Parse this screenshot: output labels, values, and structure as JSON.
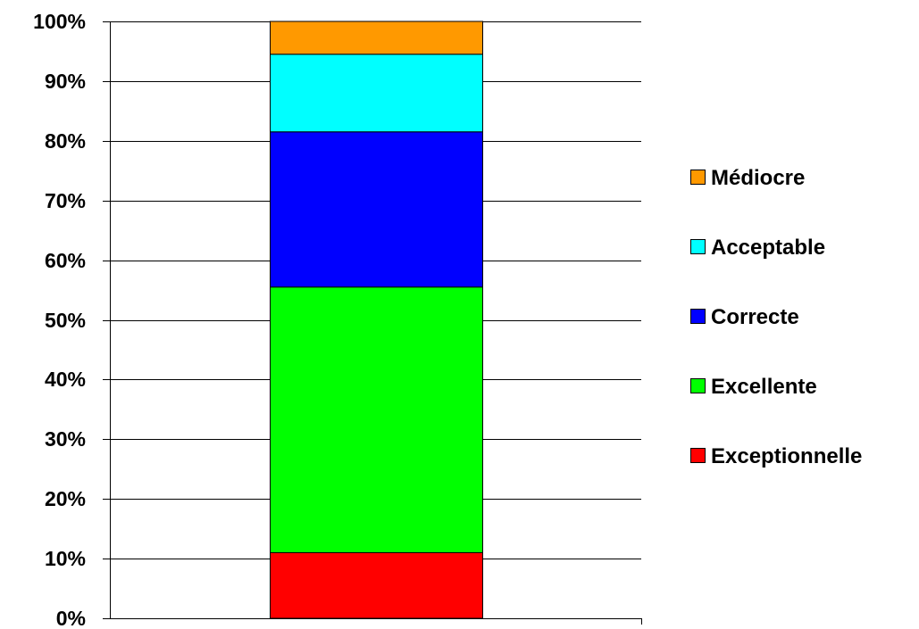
{
  "chart_data": {
    "type": "bar",
    "stacked": true,
    "categories": [
      ""
    ],
    "series": [
      {
        "name": "Exceptionnelle",
        "values": [
          11
        ],
        "color": "#ff0000"
      },
      {
        "name": "Excellente",
        "values": [
          44.5
        ],
        "color": "#00ff00"
      },
      {
        "name": "Correcte",
        "values": [
          26
        ],
        "color": "#0000ff"
      },
      {
        "name": "Acceptable",
        "values": [
          13
        ],
        "color": "#00ffff"
      },
      {
        "name": "Médiocre",
        "values": [
          5.5
        ],
        "color": "#ff9900"
      }
    ],
    "ylim": [
      0,
      100
    ],
    "yticks": [
      "0%",
      "10%",
      "20%",
      "30%",
      "40%",
      "50%",
      "60%",
      "70%",
      "80%",
      "90%",
      "100%"
    ],
    "grid": true,
    "legend_position": "right",
    "legend_order": [
      "Médiocre",
      "Acceptable",
      "Correcte",
      "Excellente",
      "Exceptionnelle"
    ]
  }
}
